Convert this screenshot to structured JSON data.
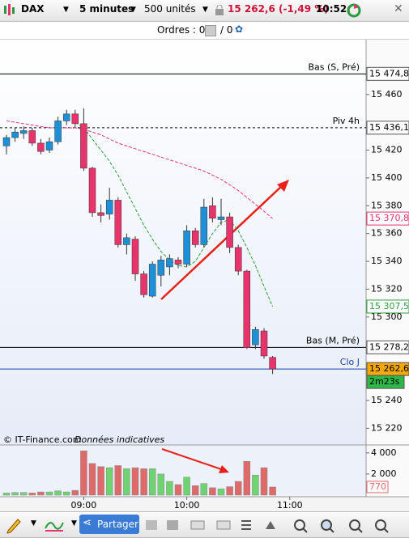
{
  "toolbar": {
    "instrument": "DAX",
    "timeframe": "5 minutes",
    "units": "500 unités",
    "quote": "15 262,6 (-1,49 %)",
    "time": "10:52:"
  },
  "orders": {
    "label": "Ordres : 0",
    "count": "/ 0"
  },
  "footer": {
    "copyright": "© IT-Finance.com",
    "note": "Données indicatives"
  },
  "bottom_toolbar": {
    "share": "Partager"
  },
  "chart_data": {
    "type": "candlestick",
    "categories": [
      null,
      null,
      null,
      null,
      null,
      null,
      null,
      null,
      null,
      "09:00",
      null,
      null,
      null,
      null,
      null,
      null,
      null,
      null,
      null,
      null,
      null,
      "10:00",
      null,
      null,
      null,
      null,
      null,
      null,
      null,
      null,
      null,
      null,
      null,
      "11:00"
    ],
    "open": [
      15423,
      15429,
      15432,
      15434,
      15425,
      15420,
      15426,
      15441,
      15446,
      15439,
      15407,
      15375,
      15374,
      15384,
      15352,
      15356,
      15331,
      15315,
      15330,
      15336,
      15341,
      15338,
      15362,
      15352,
      15380,
      15370,
      15372,
      15350,
      15333,
      15280,
      15290,
      15271,
      null,
      null
    ],
    "high": [
      15431,
      15436,
      15437,
      15436,
      15428,
      15429,
      15444,
      15449,
      15449,
      15450,
      15408,
      15381,
      15393,
      15386,
      15360,
      15358,
      15333,
      15340,
      15344,
      15345,
      15343,
      15366,
      15364,
      15385,
      15386,
      15385,
      15375,
      15352,
      15334,
      15293,
      15292,
      15272,
      null,
      null
    ],
    "low": [
      15417,
      15426,
      15428,
      15423,
      15417,
      15418,
      15424,
      15438,
      15436,
      15405,
      15372,
      15368,
      15370,
      15350,
      15345,
      15326,
      15314,
      15314,
      15322,
      15330,
      15335,
      15336,
      15350,
      15350,
      15368,
      15366,
      15346,
      15330,
      15277,
      15277,
      15270,
      15259,
      null,
      null
    ],
    "close": [
      15429,
      15433,
      15434,
      15425,
      15419,
      15426,
      15441,
      15446,
      15439,
      15407,
      15375,
      15373,
      15384,
      15352,
      15357,
      15331,
      15316,
      15338,
      15341,
      15342,
      15338,
      15362,
      15352,
      15379,
      15371,
      15372,
      15350,
      15333,
      15278,
      15291,
      15272,
      15262.6,
      null,
      null
    ],
    "up_color": "#1e90d8",
    "down_color": "#e8336d",
    "ylim": [
      15208,
      15500
    ],
    "yticks": [
      {
        "value": 15460,
        "label": "15 460"
      },
      {
        "value": 15420,
        "label": "15 420"
      },
      {
        "value": 15400,
        "label": "15 400"
      },
      {
        "value": 15380,
        "label": "15 380"
      },
      {
        "value": 15360,
        "label": "15 360"
      },
      {
        "value": 15340,
        "label": "15 340"
      },
      {
        "value": 15320,
        "label": "15 320"
      },
      {
        "value": 15300,
        "label": "15 300"
      },
      {
        "value": 15240,
        "label": "15 240"
      },
      {
        "value": 15220,
        "label": "15 220"
      }
    ],
    "moving_averages": [
      {
        "color": "#e8336d",
        "values": [
          15441,
          15440,
          15439,
          15438,
          15437,
          15436,
          15436,
          15436,
          15436,
          15435,
          15433,
          15431,
          15428,
          15425,
          15423,
          15421,
          15419,
          15417,
          15415,
          15413,
          15411,
          15409,
          15407,
          15405,
          15402,
          15399,
          15395,
          15391,
          15386,
          15381,
          15376,
          15370.8,
          null,
          null
        ],
        "value_labels": [
          null,
          null,
          null,
          null,
          null,
          null,
          null,
          null,
          null,
          null,
          null,
          null,
          null,
          null,
          null,
          null,
          null,
          null,
          null,
          null,
          null,
          null,
          null,
          null,
          null,
          null,
          null,
          null,
          null,
          null,
          null,
          "15 370,8",
          null,
          null
        ]
      },
      {
        "color": "#2e9e3e",
        "values": [
          null,
          null,
          null,
          null,
          null,
          null,
          null,
          null,
          15440,
          15436,
          15428,
          15420,
          15412,
          15402,
          15390,
          15378,
          15366,
          15356,
          15347,
          15341,
          15337,
          15336,
          15340,
          15350,
          15360,
          15368,
          15370,
          15362,
          15350,
          15337,
          15322,
          15307.5,
          null,
          null
        ],
        "value_labels": [
          null,
          null,
          null,
          null,
          null,
          null,
          null,
          null,
          null,
          null,
          null,
          null,
          null,
          null,
          null,
          null,
          null,
          null,
          null,
          null,
          null,
          null,
          null,
          null,
          null,
          null,
          null,
          null,
          null,
          null,
          null,
          "15 307,5",
          null,
          null
        ]
      }
    ],
    "levels": [
      {
        "name": "Bas (S, Pré)",
        "value": 15474.8,
        "value_label": "15 474,8",
        "color": "#000000",
        "dashed": false
      },
      {
        "name": "Piv 4h",
        "value": 15436.1,
        "value_label": "15 436,1",
        "color": "#000000",
        "dashed": true
      },
      {
        "name": "Bas (M, Pré)",
        "value": 15278.2,
        "value_label": "15 278,2",
        "color": "#000000",
        "dashed": false
      },
      {
        "name": "Clo J",
        "value": 15262.6,
        "value_label": "15 262,6",
        "color": "#1a3fb0",
        "dashed": false
      }
    ],
    "countdown": "2m23s",
    "volume": {
      "values": [
        200,
        250,
        250,
        200,
        300,
        300,
        400,
        300,
        450,
        4200,
        3000,
        2700,
        2600,
        2800,
        2500,
        2600,
        2500,
        2500,
        2000,
        1300,
        1000,
        1700,
        900,
        1100,
        700,
        600,
        800,
        1300,
        3200,
        1900,
        2600,
        770,
        null,
        null
      ],
      "value_labels": [
        null,
        null,
        null,
        null,
        null,
        null,
        null,
        null,
        null,
        null,
        null,
        null,
        null,
        null,
        null,
        null,
        null,
        null,
        null,
        null,
        null,
        null,
        null,
        null,
        null,
        null,
        null,
        null,
        null,
        null,
        null,
        "770",
        null,
        null
      ],
      "up_color": "#6fd36f",
      "down_color": "#e06a6a",
      "ylim": [
        0,
        4600
      ],
      "yticks": [
        {
          "value": 4000,
          "label": "4 000"
        },
        {
          "value": 2000,
          "label": "2 000"
        }
      ]
    }
  }
}
